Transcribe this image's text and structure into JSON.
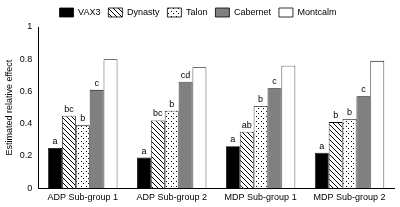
{
  "chart_data": {
    "type": "bar",
    "y_label": "Estimated relative effect",
    "categories": [
      "ADP Sub-group 1",
      "ADP Sub-group 2",
      "MDP Sub-group 1",
      "MDP Sub-group 2"
    ],
    "series": [
      {
        "name": "VAX3",
        "color": "#000000",
        "values": [
          0.25,
          0.19,
          0.26,
          0.22
        ],
        "letters": [
          "a",
          "a",
          "a",
          "a"
        ]
      },
      {
        "name": "Dynasty",
        "color": "#ffffff",
        "values": [
          0.45,
          0.42,
          0.35,
          0.41
        ],
        "letters": [
          "bc",
          "bc",
          "ab",
          "b"
        ]
      },
      {
        "name": "Talon",
        "color": "#ffffff",
        "values": [
          0.39,
          0.48,
          0.51,
          0.43
        ],
        "letters": [
          "b",
          "b",
          "b",
          "b"
        ]
      },
      {
        "name": "Cabernet",
        "color": "#808080",
        "values": [
          0.61,
          0.66,
          0.62,
          0.57
        ],
        "letters": [
          "c",
          "cd",
          "c",
          "c"
        ]
      },
      {
        "name": "Montcalm",
        "color": "#ffffff",
        "values": [
          0.8,
          0.75,
          0.76,
          0.79
        ],
        "letters": [
          null,
          null,
          null,
          null
        ]
      }
    ],
    "ylim": [
      0,
      1
    ],
    "yticks": [
      0,
      0.2,
      0.4,
      0.6,
      0.8,
      1
    ],
    "grid": false,
    "legend": "top"
  }
}
